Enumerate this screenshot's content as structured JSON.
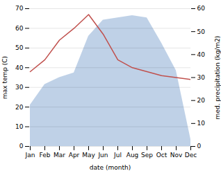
{
  "chart_data": {
    "type": "line",
    "categories": [
      "Jan",
      "Feb",
      "Mar",
      "Apr",
      "May",
      "Jun",
      "Jul",
      "Aug",
      "Sep",
      "Oct",
      "Nov",
      "Dec"
    ],
    "series": [
      {
        "type": "area",
        "axis": "y2",
        "color": "#b8cce4",
        "values": [
          18,
          27,
          30,
          32,
          48,
          55,
          56,
          57,
          56,
          45,
          33,
          3
        ]
      },
      {
        "type": "line",
        "color": "#c0504d",
        "values": [
          38,
          44,
          54,
          60,
          67,
          57,
          44,
          40,
          38,
          36,
          35,
          34
        ]
      }
    ],
    "xlabel": "date (month)",
    "ylabel": "max temp (C)",
    "y2label": "med. precipitation (kg/m2)",
    "ylim": [
      0,
      70
    ],
    "yticks": [
      0,
      10,
      20,
      30,
      40,
      50,
      60,
      70
    ],
    "y2lim": [
      0,
      60
    ],
    "y2ticks": [
      0,
      10,
      20,
      30,
      40,
      50,
      60
    ],
    "grid": true
  }
}
